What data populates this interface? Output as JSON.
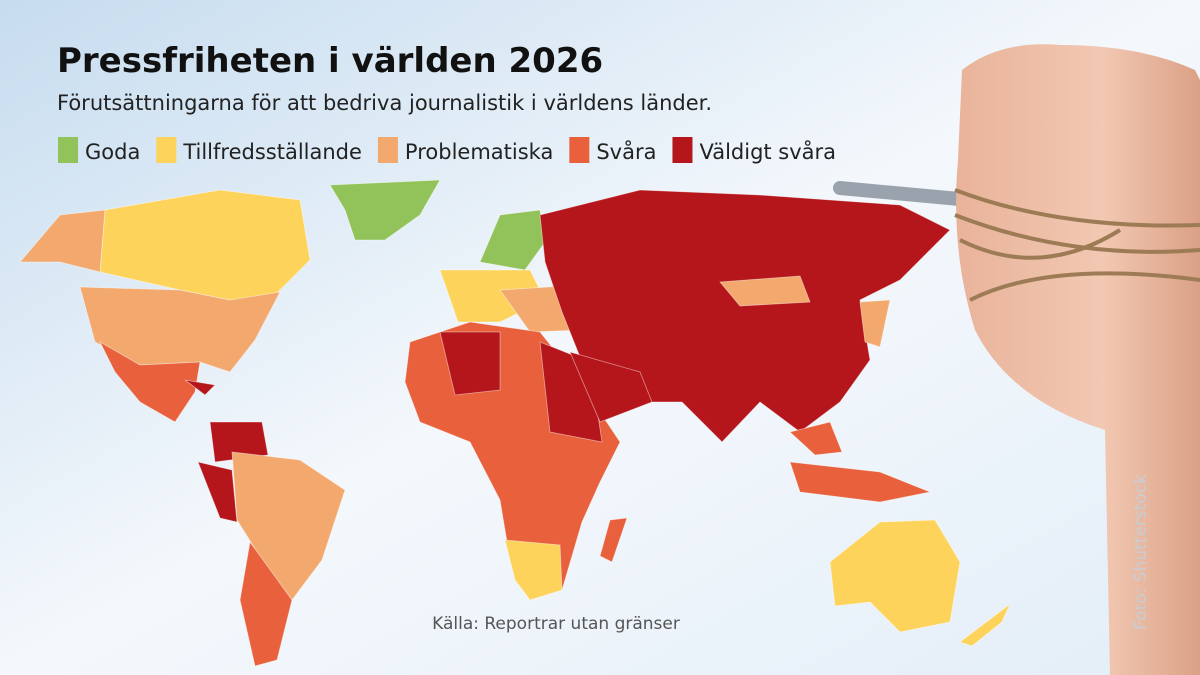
{
  "header": {
    "title": "Pressfriheten i världen 2026",
    "subtitle": "Förutsättningarna för att bedriva journalistik i världens länder."
  },
  "legend": [
    {
      "label": "Goda",
      "color": "#92c35a"
    },
    {
      "label": "Tillfredsställande",
      "color": "#fdd35b"
    },
    {
      "label": "Problematiska",
      "color": "#f3a86e"
    },
    {
      "label": "Svåra",
      "color": "#e8603c"
    },
    {
      "label": "Väldigt svåra",
      "color": "#b5161b"
    }
  ],
  "source": "Källa: Reportrar utan gränser",
  "photo_credit": "Foto: Shutterstock"
}
